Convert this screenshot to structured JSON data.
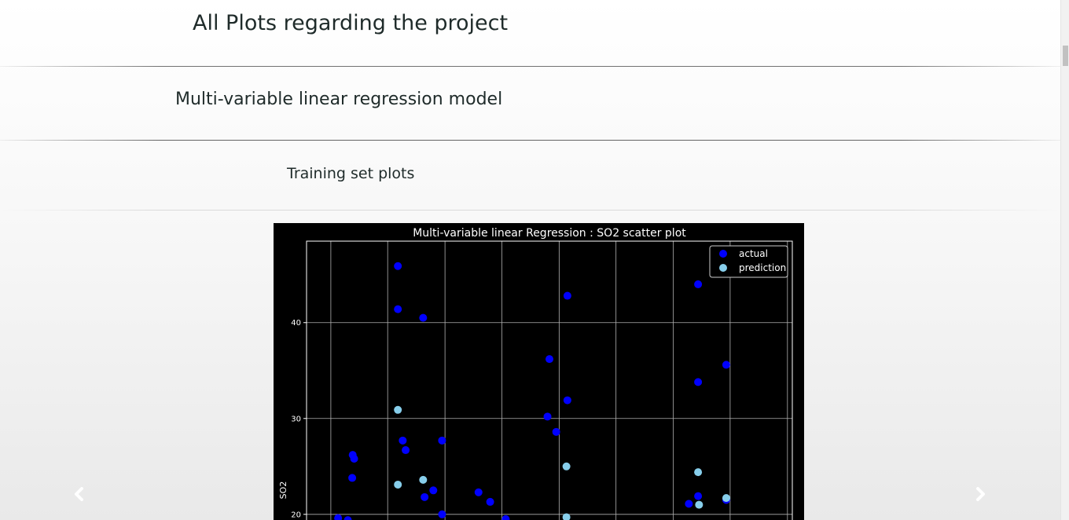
{
  "page": {
    "title": "All Plots regarding the project",
    "model_heading": "Multi-variable linear regression model",
    "section_heading": "Training set plots"
  },
  "carousel": {
    "prev_icon": "chevron-left-icon",
    "next_icon": "chevron-right-icon"
  },
  "colors": {
    "actual": "#0000ff",
    "prediction": "#87ceeb",
    "plot_background": "#000000",
    "grid": "#b0b0b0"
  },
  "chart_data": {
    "type": "scatter",
    "title": "Multi-variable linear Regression : SO2 scatter plot",
    "xlabel": "",
    "ylabel": "SO2",
    "xlim": [
      0,
      1
    ],
    "ylim": [
      19,
      48.5
    ],
    "yticks": [
      20,
      30,
      40
    ],
    "x_gridlines": [
      0.05,
      0.167,
      0.285,
      0.402,
      0.52,
      0.637,
      0.755,
      0.872,
      0.99
    ],
    "grid": true,
    "legend_position": "upper right",
    "series": [
      {
        "name": "actual",
        "points": [
          {
            "x": 0.065,
            "y": 19.6
          },
          {
            "x": 0.085,
            "y": 19.4
          },
          {
            "x": 0.095,
            "y": 26.2
          },
          {
            "x": 0.098,
            "y": 25.8
          },
          {
            "x": 0.094,
            "y": 23.8
          },
          {
            "x": 0.188,
            "y": 45.9
          },
          {
            "x": 0.188,
            "y": 41.4
          },
          {
            "x": 0.198,
            "y": 27.7
          },
          {
            "x": 0.204,
            "y": 26.7
          },
          {
            "x": 0.24,
            "y": 40.5
          },
          {
            "x": 0.243,
            "y": 21.8
          },
          {
            "x": 0.261,
            "y": 22.5
          },
          {
            "x": 0.279,
            "y": 27.7
          },
          {
            "x": 0.279,
            "y": 20.0
          },
          {
            "x": 0.354,
            "y": 22.3
          },
          {
            "x": 0.378,
            "y": 21.3
          },
          {
            "x": 0.41,
            "y": 19.5
          },
          {
            "x": 0.496,
            "y": 30.2
          },
          {
            "x": 0.5,
            "y": 36.2
          },
          {
            "x": 0.514,
            "y": 28.6
          },
          {
            "x": 0.537,
            "y": 42.8
          },
          {
            "x": 0.537,
            "y": 31.9
          },
          {
            "x": 0.787,
            "y": 21.1
          },
          {
            "x": 0.806,
            "y": 44.0
          },
          {
            "x": 0.806,
            "y": 33.8
          },
          {
            "x": 0.806,
            "y": 21.9
          },
          {
            "x": 0.864,
            "y": 35.6
          },
          {
            "x": 0.864,
            "y": 21.5
          }
        ]
      },
      {
        "name": "prediction",
        "points": [
          {
            "x": 0.188,
            "y": 30.9
          },
          {
            "x": 0.188,
            "y": 23.1
          },
          {
            "x": 0.24,
            "y": 23.6
          },
          {
            "x": 0.535,
            "y": 25.0
          },
          {
            "x": 0.535,
            "y": 19.7
          },
          {
            "x": 0.806,
            "y": 24.4
          },
          {
            "x": 0.808,
            "y": 21.0
          },
          {
            "x": 0.864,
            "y": 21.7
          }
        ]
      }
    ]
  }
}
